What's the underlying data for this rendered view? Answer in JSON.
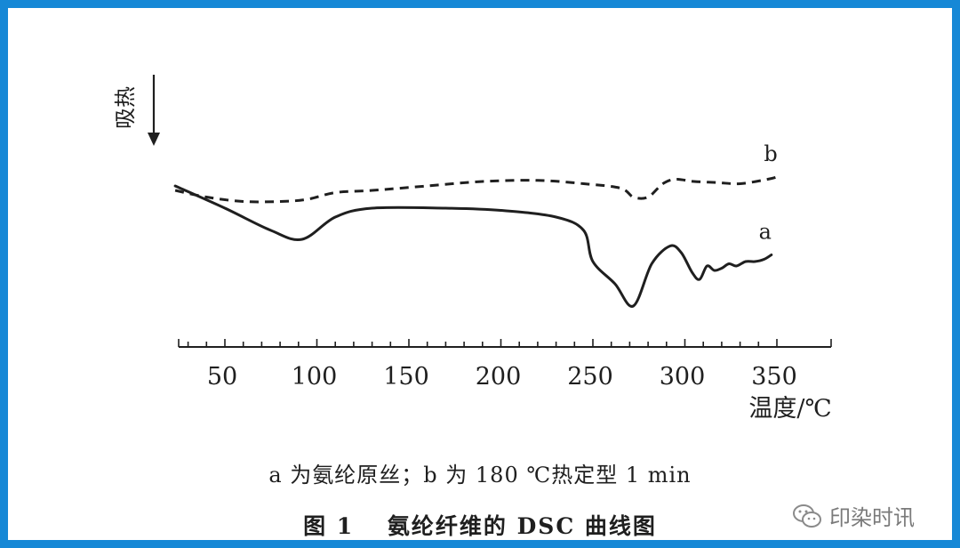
{
  "chart_data": {
    "type": "line",
    "y_axis_label": "吸热",
    "xlabel": "温度/℃",
    "xlim": [
      22,
      350
    ],
    "xticks": [
      50,
      100,
      150,
      200,
      250,
      300,
      350
    ],
    "series": [
      {
        "name": "a",
        "style": "solid",
        "x": [
          23,
          50,
          75,
          92,
          110,
          130,
          170,
          200,
          230,
          245,
          250,
          262,
          272,
          282,
          292,
          298,
          304,
          308,
          312,
          316,
          320,
          324,
          328,
          333,
          338,
          343,
          347
        ],
        "y": [
          0.92,
          0.82,
          0.72,
          0.68,
          0.78,
          0.82,
          0.82,
          0.81,
          0.78,
          0.72,
          0.58,
          0.48,
          0.38,
          0.57,
          0.65,
          0.62,
          0.53,
          0.5,
          0.56,
          0.54,
          0.55,
          0.57,
          0.56,
          0.58,
          0.58,
          0.59,
          0.61
        ]
      },
      {
        "name": "b",
        "style": "dashed",
        "x": [
          23,
          40,
          60,
          80,
          95,
          110,
          130,
          160,
          190,
          220,
          245,
          265,
          272,
          280,
          288,
          295,
          305,
          318,
          330,
          345,
          350
        ],
        "y": [
          0.9,
          0.87,
          0.85,
          0.85,
          0.86,
          0.89,
          0.9,
          0.92,
          0.94,
          0.945,
          0.93,
          0.91,
          0.87,
          0.87,
          0.93,
          0.95,
          0.94,
          0.935,
          0.93,
          0.95,
          0.96
        ]
      }
    ]
  },
  "caption": {
    "note": "a 为氨纶原丝；b 为 180 ℃热定型 1 min",
    "title": "图 1　 氨纶纤维的 DSC 曲线图"
  },
  "watermark": {
    "text": "印染时讯",
    "icon": "wechat-icon"
  },
  "colors": {
    "border": "#1688d6",
    "ink": "#1f1f1f",
    "watermark": "#7a7a7a"
  }
}
